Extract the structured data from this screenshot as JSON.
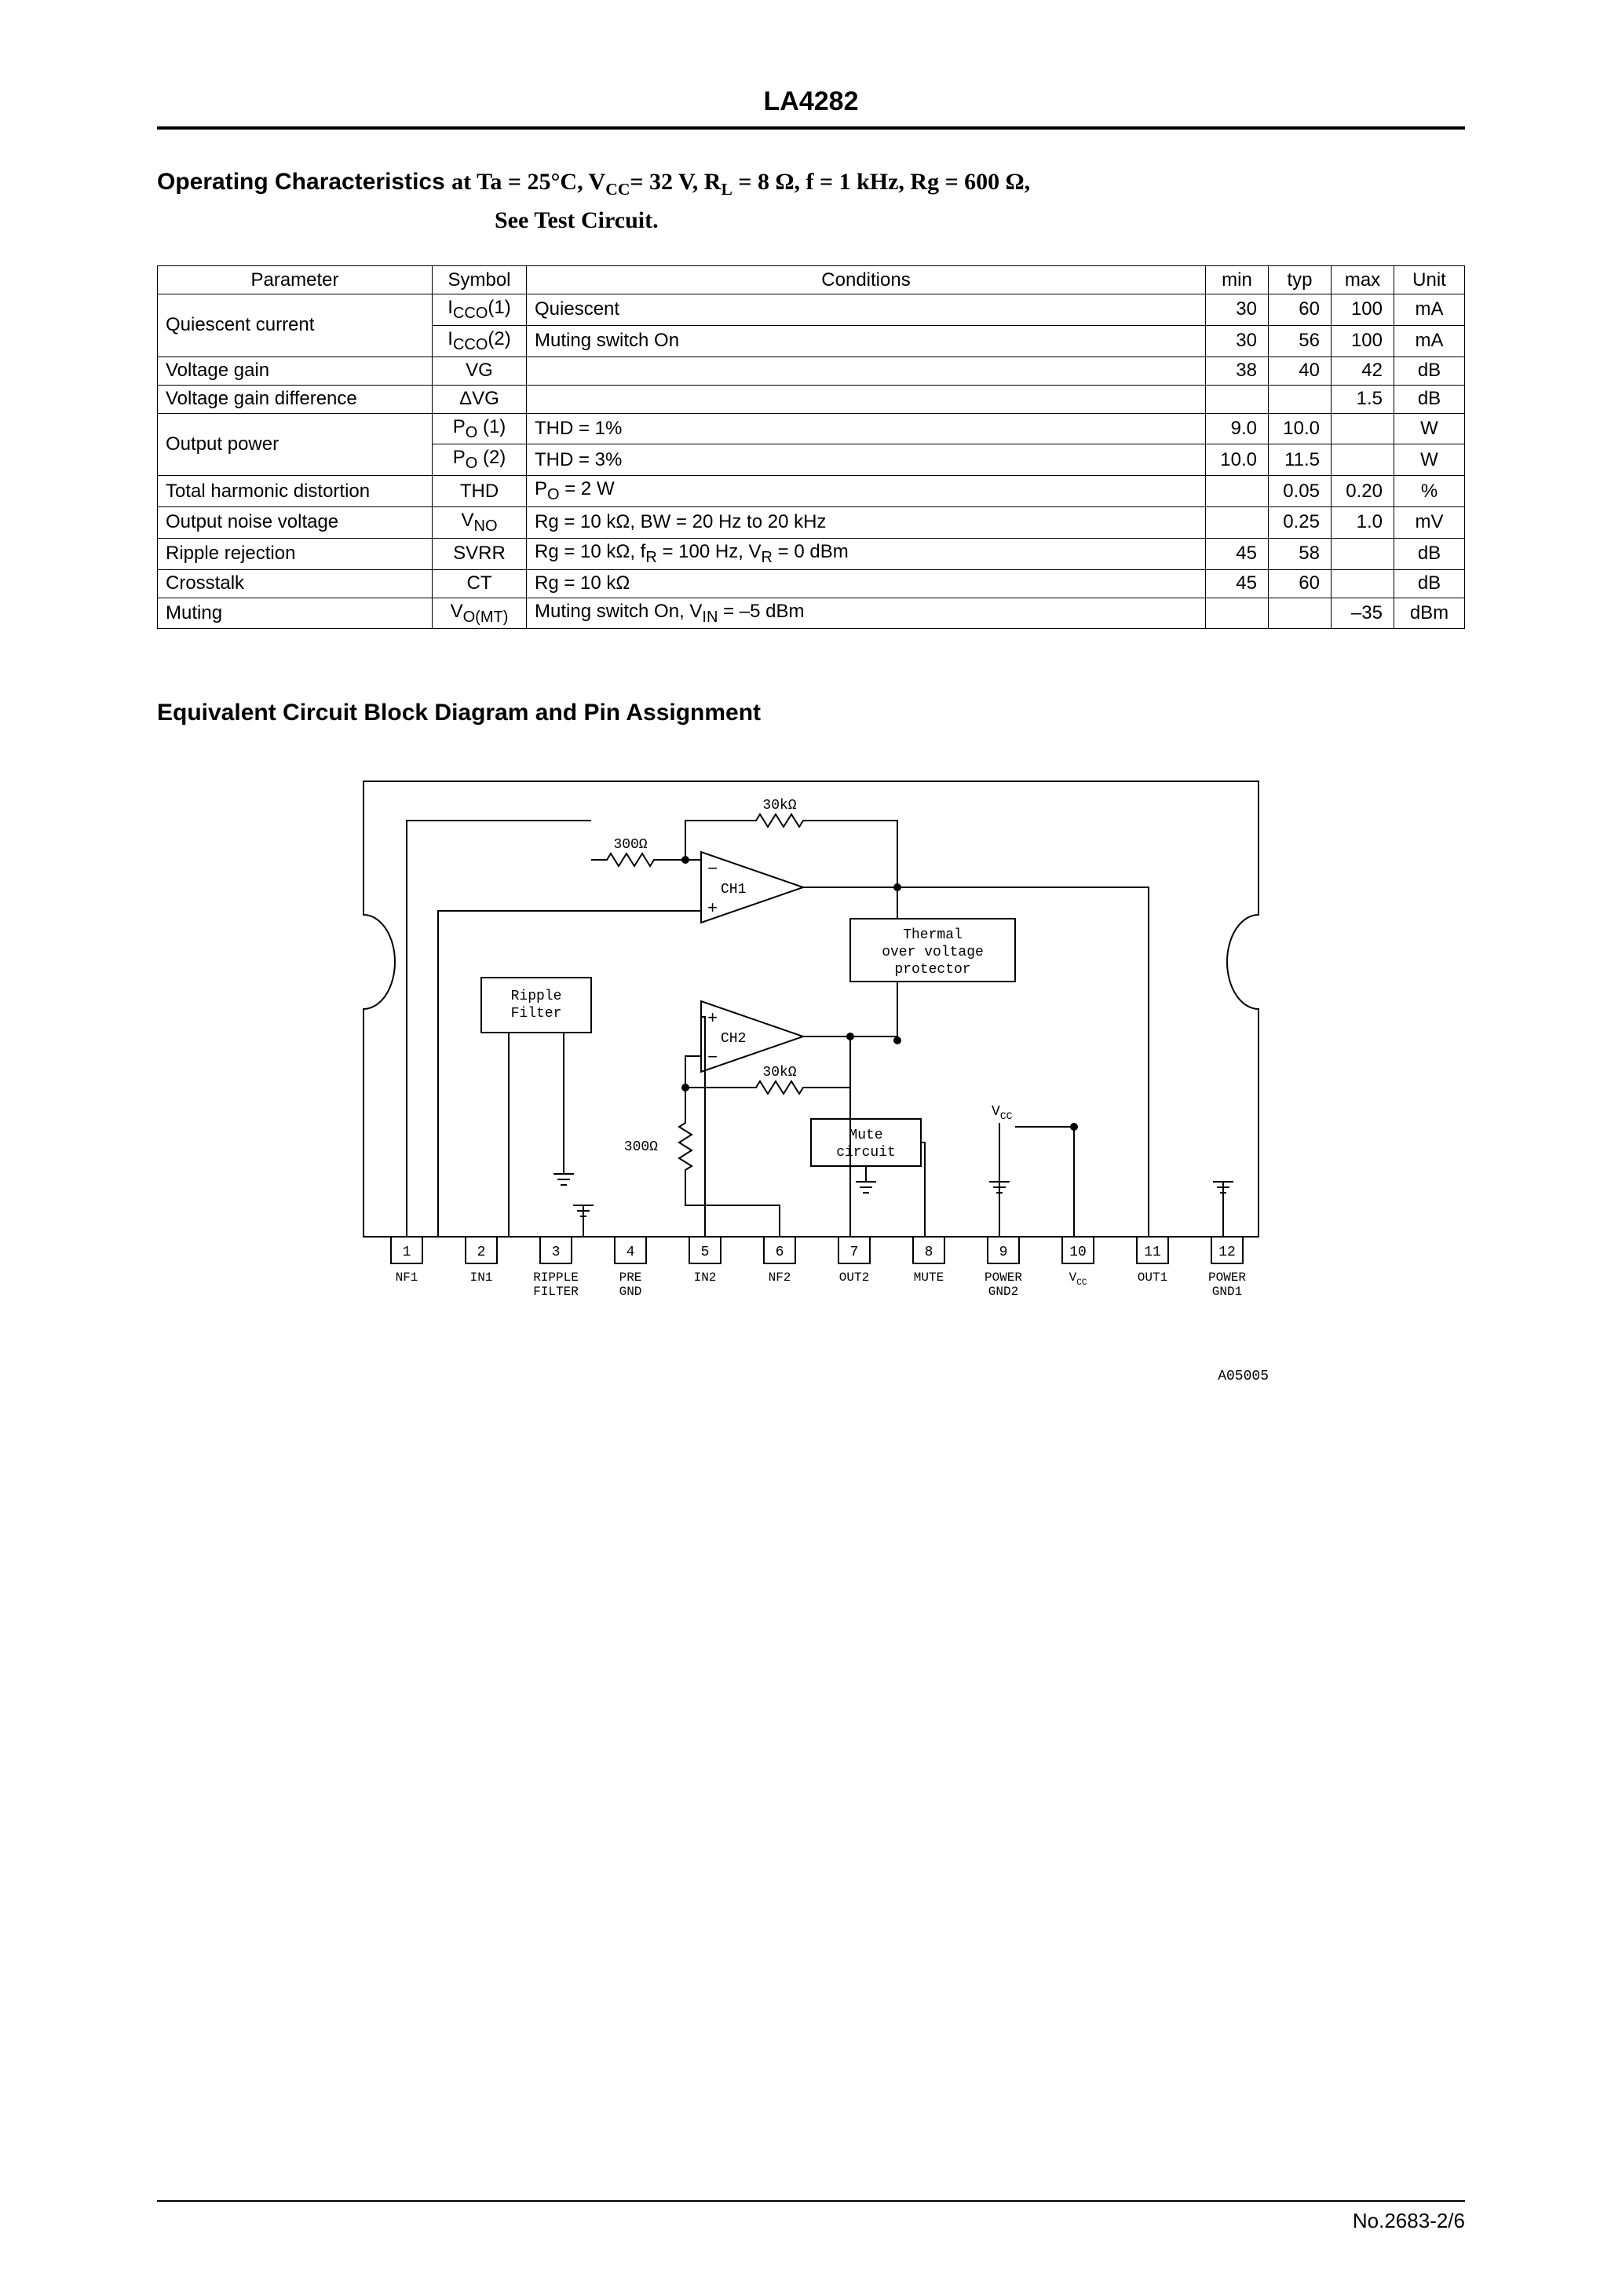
{
  "header": {
    "part_number": "LA4282"
  },
  "operating": {
    "title_prefix": "Operating Characteristics",
    "title_conditions": " at Ta = 25°C, V_CC = 32 V, R_L = 8 Ω, f = 1 kHz, Rg = 600 Ω,",
    "subtitle": "See Test Circuit.",
    "columns": [
      "Parameter",
      "Symbol",
      "Conditions",
      "min",
      "typ",
      "max",
      "Unit"
    ],
    "rows": [
      {
        "param": "Quiescent current",
        "rowspan": 2,
        "symbol_html": "I<sub>CCO</sub>(1)",
        "cond": "Quiescent",
        "min": "30",
        "typ": "60",
        "max": "100",
        "unit": "mA"
      },
      {
        "param": null,
        "symbol_html": "I<sub>CCO</sub>(2)",
        "cond": "Muting switch On",
        "min": "30",
        "typ": "56",
        "max": "100",
        "unit": "mA"
      },
      {
        "param": "Voltage gain",
        "symbol_html": "VG",
        "cond": "",
        "min": "38",
        "typ": "40",
        "max": "42",
        "unit": "dB"
      },
      {
        "param": "Voltage gain difference",
        "symbol_html": "ΔVG",
        "cond": "",
        "min": "",
        "typ": "",
        "max": "1.5",
        "unit": "dB"
      },
      {
        "param": "Output power",
        "rowspan": 2,
        "symbol_html": "P<sub>O</sub> (1)",
        "cond": "THD = 1%",
        "min": "9.0",
        "typ": "10.0",
        "max": "",
        "unit": "W"
      },
      {
        "param": null,
        "symbol_html": "P<sub>O</sub> (2)",
        "cond": "THD = 3%",
        "min": "10.0",
        "typ": "11.5",
        "max": "",
        "unit": "W"
      },
      {
        "param": "Total harmonic distortion",
        "symbol_html": "THD",
        "cond_html": "P<sub>O</sub> = 2 W",
        "min": "",
        "typ": "0.05",
        "max": "0.20",
        "unit": "%"
      },
      {
        "param": "Output noise voltage",
        "symbol_html": "V<sub>NO</sub>",
        "cond": "Rg = 10 kΩ, BW = 20 Hz to 20 kHz",
        "min": "",
        "typ": "0.25",
        "max": "1.0",
        "unit": "mV"
      },
      {
        "param": "Ripple rejection",
        "symbol_html": "SVRR",
        "cond_html": "Rg = 10 kΩ, f<sub>R</sub> = 100 Hz, V<sub>R</sub> = 0 dBm",
        "min": "45",
        "typ": "58",
        "max": "",
        "unit": "dB"
      },
      {
        "param": "Crosstalk",
        "symbol_html": "CT",
        "cond": "Rg = 10 kΩ",
        "min": "45",
        "typ": "60",
        "max": "",
        "unit": "dB"
      },
      {
        "param": "Muting",
        "symbol_html": "V<sub>O(MT)</sub>",
        "cond_html": "Muting switch On, V<sub>IN</sub> = –5 dBm",
        "min": "",
        "typ": "",
        "max": "–35",
        "unit": "dBm"
      }
    ]
  },
  "diagram": {
    "title": "Equivalent Circuit Block Diagram and Pin Assignment",
    "font_family": "Courier, monospace",
    "font_size_label": 18,
    "font_size_pin": 18,
    "stroke": "#000000",
    "stroke_width": 2,
    "background": "#ffffff",
    "figure_code": "A05005",
    "labels": {
      "r30k_top": "30kΩ",
      "r300_top": "300Ω",
      "ch1": "CH1",
      "ch2": "CH2",
      "thermal1": "Thermal",
      "thermal2": "over voltage",
      "thermal3": "protector",
      "ripple1": "Ripple",
      "ripple2": "Filter",
      "r30k_bot": "30kΩ",
      "r300_bot": "300Ω",
      "mute1": "Mute",
      "mute2": "circuit",
      "vcc": "V",
      "vcc_sub": "CC"
    },
    "pins": [
      {
        "n": "1",
        "label": "NF1"
      },
      {
        "n": "2",
        "label": "IN1"
      },
      {
        "n": "3",
        "label": "RIPPLE",
        "label2": "FILTER"
      },
      {
        "n": "4",
        "label": "PRE",
        "label2": "GND"
      },
      {
        "n": "5",
        "label": "IN2"
      },
      {
        "n": "6",
        "label": "NF2"
      },
      {
        "n": "7",
        "label": "OUT2"
      },
      {
        "n": "8",
        "label": "MUTE"
      },
      {
        "n": "9",
        "label": "POWER",
        "label2": "GND2"
      },
      {
        "n": "10",
        "label": "V",
        "label_sub": "CC"
      },
      {
        "n": "11",
        "label": "OUT1"
      },
      {
        "n": "12",
        "label": "POWER",
        "label2": "GND1"
      }
    ]
  },
  "footer": {
    "page_ref": "No.2683-2/6"
  }
}
